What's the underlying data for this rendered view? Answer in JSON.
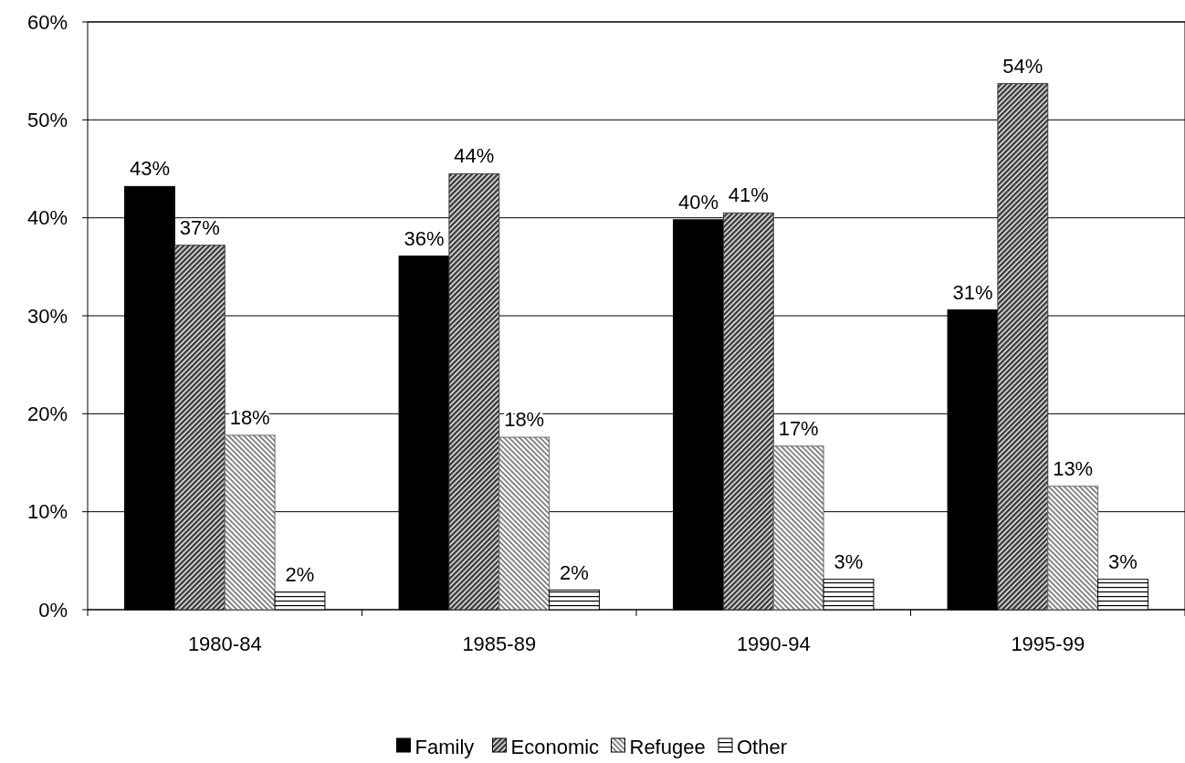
{
  "chart_data": {
    "type": "bar",
    "categories": [
      "1980-84",
      "1985-89",
      "1990-94",
      "1995-99"
    ],
    "series": [
      {
        "name": "Family",
        "color": "#000000",
        "values": [
          43.2,
          36.1,
          39.8,
          30.6
        ],
        "value_labels": [
          "43%",
          "36%",
          "40%",
          "31%"
        ]
      },
      {
        "name": "Economic",
        "color": "#3a3a3a",
        "values": [
          37.2,
          44.5,
          40.5,
          53.7
        ],
        "value_labels": [
          "37%",
          "44%",
          "41%",
          "54%"
        ]
      },
      {
        "name": "Refugee",
        "color": "#6a6a6a",
        "values": [
          17.8,
          17.6,
          16.7,
          12.6
        ],
        "value_labels": [
          "18%",
          "18%",
          "17%",
          "13%"
        ]
      },
      {
        "name": "Other",
        "color": "#000000",
        "values": [
          1.8,
          2.0,
          3.1,
          3.1
        ],
        "value_labels": [
          "2%",
          "2%",
          "3%",
          "3%"
        ]
      }
    ],
    "ylim": [
      0,
      60
    ],
    "yticks": [
      {
        "value": 0,
        "label": "0%"
      },
      {
        "value": 10,
        "label": "10%"
      },
      {
        "value": 20,
        "label": "20%"
      },
      {
        "value": 30,
        "label": "30%"
      },
      {
        "value": 40,
        "label": "40%"
      },
      {
        "value": 50,
        "label": "50%"
      },
      {
        "value": 60,
        "label": "60%"
      }
    ],
    "grid": "y",
    "legend": "bottom"
  }
}
